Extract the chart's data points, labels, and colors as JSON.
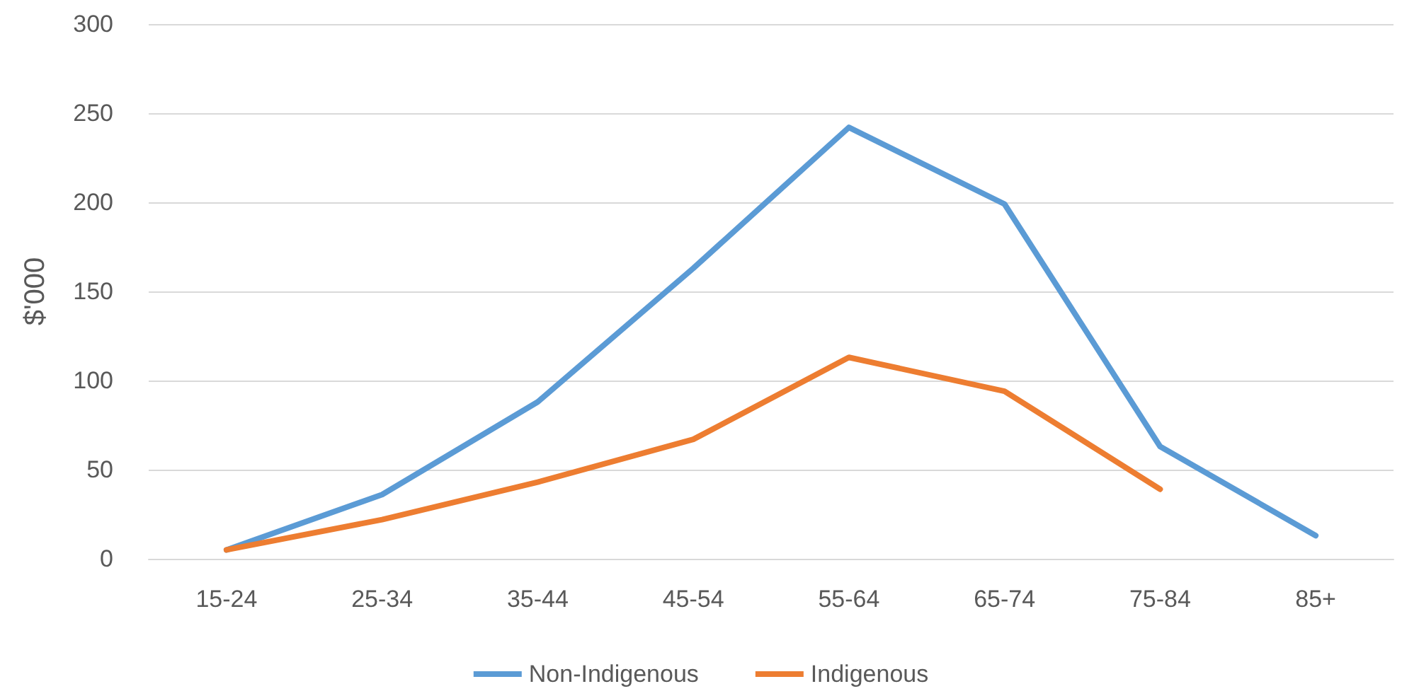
{
  "chart_data": {
    "type": "line",
    "ylabel": "$'000",
    "categories": [
      "15-24",
      "25-34",
      "35-44",
      "45-54",
      "55-64",
      "65-74",
      "75-84",
      "85+"
    ],
    "series": [
      {
        "name": "Non-Indigenous",
        "color": "#5b9bd5",
        "values": [
          5,
          36,
          88,
          163,
          242,
          199,
          63,
          13
        ]
      },
      {
        "name": "Indigenous",
        "color": "#ed7d31",
        "values": [
          5,
          22,
          43,
          67,
          113,
          94,
          39,
          null
        ]
      }
    ],
    "ylim": [
      0,
      300
    ],
    "yticks": [
      0,
      50,
      100,
      150,
      200,
      250,
      300
    ],
    "grid": "y",
    "legend": "bottom",
    "marker": "none",
    "line_style": "solid"
  }
}
